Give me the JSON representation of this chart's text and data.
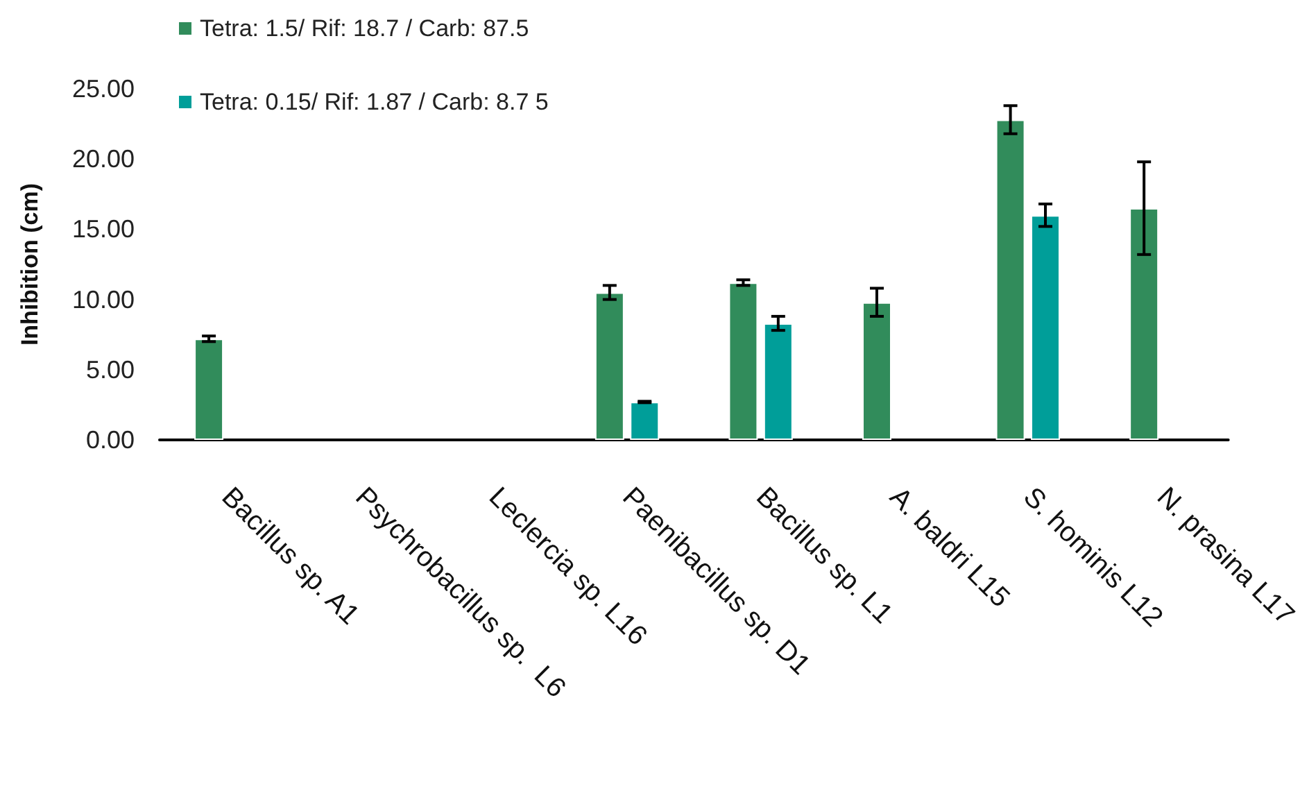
{
  "chart_data": {
    "type": "bar",
    "ylabel": "Inhibition (cm)",
    "categories": [
      "Bacillus sp. A1",
      "Psychrobacillus sp.  L6",
      "Leclercia sp. L16",
      "Paenibacillus sp. D1",
      "Bacillus sp. L1",
      "A. baldri L15",
      "S. hominis L12",
      "N. prasina L17"
    ],
    "series": [
      {
        "name": "Tetra: 1.5/ Rif: 18.7 / Carb: 87.5",
        "color": "#318c5b",
        "values": [
          7.2,
          null,
          null,
          10.5,
          11.2,
          9.8,
          22.8,
          16.5
        ],
        "errors": [
          0.2,
          null,
          null,
          0.5,
          0.2,
          1.0,
          1.0,
          3.3
        ]
      },
      {
        "name": "Tetra: 0.15/ Rif: 1.87 / Carb: 8.7 5",
        "color": "#009e99",
        "values": [
          null,
          null,
          null,
          2.7,
          8.3,
          null,
          16.0,
          null
        ],
        "errors": [
          null,
          null,
          null,
          0.05,
          0.5,
          null,
          0.8,
          null
        ]
      }
    ],
    "ylim": [
      0,
      25
    ],
    "yticks": [
      {
        "value": 0,
        "label": "0.00"
      },
      {
        "value": 5,
        "label": "5.00"
      },
      {
        "value": 10,
        "label": "10.00"
      },
      {
        "value": 15,
        "label": "15.00"
      },
      {
        "value": 20,
        "label": "20.00"
      },
      {
        "value": 25,
        "label": "25.00"
      }
    ],
    "grid": false,
    "legend": "top left"
  }
}
